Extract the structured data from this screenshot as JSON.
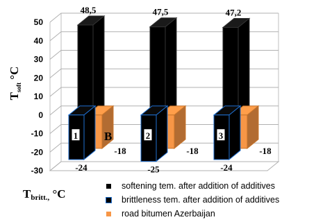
{
  "chart_data": {
    "type": "bar",
    "title": "",
    "ylabel": "T_soft °C",
    "ylabel_main": "T",
    "ylabel_sub": "soft",
    "ylabel_unit": " °C",
    "xlabel": "T_britt., °C",
    "xlabel_main": "T",
    "xlabel_sub": "britt.,",
    "xlabel_unit": " °C",
    "ylim": [
      -30,
      50
    ],
    "yticks": [
      50,
      40,
      30,
      20,
      10,
      0,
      -10,
      -20,
      -30
    ],
    "grid": true,
    "legend_position": "bottom-right",
    "categories": [
      "1",
      "2",
      "3"
    ],
    "series": [
      {
        "name": "softening tem. after addition of additives",
        "values": [
          48.5,
          47.5,
          47.2
        ],
        "labels": [
          "48,5",
          "47,5",
          "47,2"
        ],
        "color": "#000000"
      },
      {
        "name": "brittleness  tem. after addition of additives",
        "values": [
          -24,
          -25,
          -24
        ],
        "labels": [
          "-24",
          "-25",
          "-24"
        ],
        "color": "#000000",
        "edge_color": "#1f6fd0"
      },
      {
        "name": "road bitumen Azerbaijan",
        "values": [
          -18,
          -18,
          -18
        ],
        "labels": [
          "-18",
          "-18",
          "-18"
        ],
        "color": "#f79646"
      }
    ],
    "annotation": "B"
  }
}
